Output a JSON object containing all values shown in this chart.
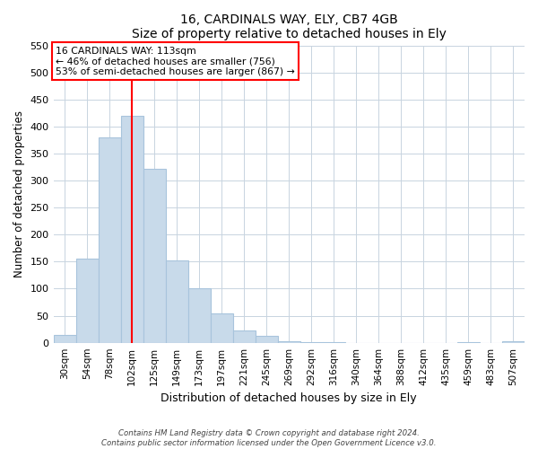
{
  "title": "16, CARDINALS WAY, ELY, CB7 4GB",
  "subtitle": "Size of property relative to detached houses in Ely",
  "xlabel": "Distribution of detached houses by size in Ely",
  "ylabel": "Number of detached properties",
  "bar_labels": [
    "30sqm",
    "54sqm",
    "78sqm",
    "102sqm",
    "125sqm",
    "149sqm",
    "173sqm",
    "197sqm",
    "221sqm",
    "245sqm",
    "269sqm",
    "292sqm",
    "316sqm",
    "340sqm",
    "364sqm",
    "388sqm",
    "412sqm",
    "435sqm",
    "459sqm",
    "483sqm",
    "507sqm"
  ],
  "bar_values": [
    15,
    155,
    380,
    420,
    322,
    153,
    100,
    55,
    22,
    12,
    2,
    1,
    1,
    0,
    0,
    0,
    0,
    0,
    1,
    0,
    2
  ],
  "bar_color": "#c8daea",
  "bar_edge_color": "#a8c4dc",
  "vline_x": 3.0,
  "vline_color": "red",
  "annotation_text": "16 CARDINALS WAY: 113sqm\n← 46% of detached houses are smaller (756)\n53% of semi-detached houses are larger (867) →",
  "annotation_box_color": "white",
  "annotation_box_edge": "red",
  "ylim": [
    0,
    550
  ],
  "yticks": [
    0,
    50,
    100,
    150,
    200,
    250,
    300,
    350,
    400,
    450,
    500,
    550
  ],
  "footer_line1": "Contains HM Land Registry data © Crown copyright and database right 2024.",
  "footer_line2": "Contains public sector information licensed under the Open Government Licence v3.0.",
  "figsize": [
    6.0,
    5.0
  ],
  "dpi": 100
}
